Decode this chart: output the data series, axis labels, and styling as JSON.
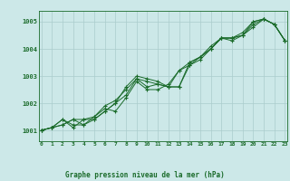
{
  "title": "Graphe pression niveau de la mer (hPa)",
  "bg_color": "#cce8e8",
  "grid_color": "#aacccc",
  "line_color": "#1a6b2a",
  "x_min": 0,
  "x_max": 23,
  "y_min": 1000.6,
  "y_max": 1005.4,
  "y_ticks": [
    1001,
    1002,
    1003,
    1004,
    1005
  ],
  "series": [
    [
      1001.0,
      1001.1,
      1001.2,
      1001.4,
      1001.2,
      1001.4,
      1001.7,
      1002.0,
      1002.3,
      1002.9,
      1002.6,
      1002.7,
      1002.6,
      1002.6,
      1003.5,
      1003.7,
      1004.0,
      1004.4,
      1004.4,
      1004.5,
      1005.0,
      1005.1,
      1004.9,
      1004.3
    ],
    [
      1001.0,
      1001.1,
      1001.4,
      1001.1,
      1001.4,
      1001.5,
      1001.8,
      1001.7,
      1002.2,
      1002.8,
      1002.5,
      1002.5,
      1002.7,
      1003.2,
      1003.5,
      1003.7,
      1004.0,
      1004.4,
      1004.4,
      1004.6,
      1005.0,
      1005.1,
      1004.9,
      1004.3
    ],
    [
      1001.0,
      1001.1,
      1001.4,
      1001.2,
      1001.2,
      1001.5,
      1001.9,
      1002.1,
      1002.5,
      1002.9,
      1002.8,
      1002.7,
      1002.6,
      1002.6,
      1003.4,
      1003.7,
      1004.1,
      1004.4,
      1004.4,
      1004.5,
      1004.9,
      1005.1,
      1004.9,
      1004.3
    ],
    [
      1001.0,
      1001.1,
      1001.2,
      1001.4,
      1001.4,
      1001.4,
      1001.7,
      1002.0,
      1002.6,
      1003.0,
      1002.9,
      1002.8,
      1002.6,
      1003.2,
      1003.4,
      1003.6,
      1004.0,
      1004.4,
      1004.3,
      1004.5,
      1004.8,
      1005.1,
      1004.9,
      1004.3
    ]
  ]
}
